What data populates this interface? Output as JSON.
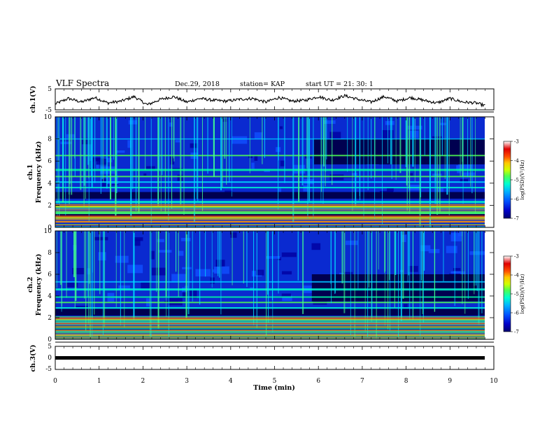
{
  "header": {
    "title": "VLF Spectra",
    "date": "Dec.29, 2018",
    "station": "station= KAP",
    "start": "start  UT =   21: 30: 1"
  },
  "colors": {
    "colormap": [
      "#000070",
      "#0000c8",
      "#0050ff",
      "#00b4ff",
      "#00ffd0",
      "#50ff50",
      "#d0ff00",
      "#ffc800",
      "#ff5000",
      "#e00000",
      "#ffffff"
    ]
  },
  "chart_data": [
    {
      "id": "ch1-waveform",
      "type": "line",
      "ylabel": "ch.1(V)",
      "ylim": [
        -5,
        5
      ],
      "yticks": [
        "5",
        "-5"
      ],
      "xlim": [
        0,
        10
      ],
      "series": [
        {
          "x": [
            0,
            0.3,
            0.6,
            0.9,
            1.2,
            1.5,
            1.8,
            2.1,
            2.4,
            2.7,
            3.0,
            3.3,
            3.6,
            3.9,
            4.2,
            4.5,
            4.8,
            5.1,
            5.4,
            5.7,
            6.0,
            6.3,
            6.6,
            6.9,
            7.2,
            7.5,
            7.8,
            8.1,
            8.4,
            8.7,
            9.0,
            9.3,
            9.6,
            9.8
          ],
          "values": [
            -2.5,
            0.5,
            -1.5,
            1,
            -2,
            -1,
            1.5,
            -3,
            0,
            1.5,
            -1.5,
            0.5,
            -0.5,
            -1,
            0,
            0.5,
            -1.5,
            1,
            -1,
            -0.5,
            1.5,
            -0.5,
            2,
            0,
            -1.5,
            1.5,
            -1,
            1,
            -0.5,
            -2,
            0.5,
            -1.5,
            -2,
            -3.5
          ]
        }
      ]
    },
    {
      "id": "ch1-spectrogram",
      "type": "heatmap",
      "ylabel": "Frequency (kHz)",
      "channel": "ch.1",
      "ylim": [
        0,
        10
      ],
      "yticks": [
        "0",
        "2",
        "4",
        "6",
        "8",
        "10"
      ],
      "xlim": [
        0,
        10
      ],
      "colorbar": {
        "label": "log(PSD)(V²/Hz)",
        "ticks": [
          "-3",
          "-4",
          "-5",
          "-6",
          "-7"
        ],
        "range": [
          -7,
          -3
        ]
      },
      "description_bands_khz": [
        0.4,
        0.8,
        1.2,
        1.9,
        2.3,
        3.5,
        4.1,
        5.2,
        6.4
      ]
    },
    {
      "id": "ch2-spectrogram",
      "type": "heatmap",
      "ylabel": "Frequency (kHz)",
      "channel": "ch.2",
      "ylim": [
        0,
        10
      ],
      "yticks": [
        "0",
        "2",
        "4",
        "6",
        "8",
        "10"
      ],
      "xlim": [
        0,
        10
      ],
      "colorbar": {
        "label": "log(PSD)(V²/Hz)",
        "ticks": [
          "-3",
          "-4",
          "-5",
          "-6",
          "-7"
        ],
        "range": [
          -7,
          -3
        ]
      },
      "description_bands_khz": [
        0.5,
        0.9,
        1.8,
        2.8,
        3.4,
        4.1,
        4.6
      ]
    },
    {
      "id": "ch3-waveform",
      "type": "line",
      "ylabel": "ch.3(V)",
      "ylim": [
        -5,
        5
      ],
      "yticks": [
        "5",
        "0",
        "-5"
      ],
      "xlim": [
        0,
        10
      ],
      "xlabel": "Time (min)",
      "xticks": [
        "0",
        "1",
        "2",
        "3",
        "4",
        "5",
        "6",
        "7",
        "8",
        "9",
        "10"
      ],
      "series": [
        {
          "x": [
            0,
            9.8
          ],
          "values": [
            0,
            0
          ]
        }
      ]
    }
  ]
}
